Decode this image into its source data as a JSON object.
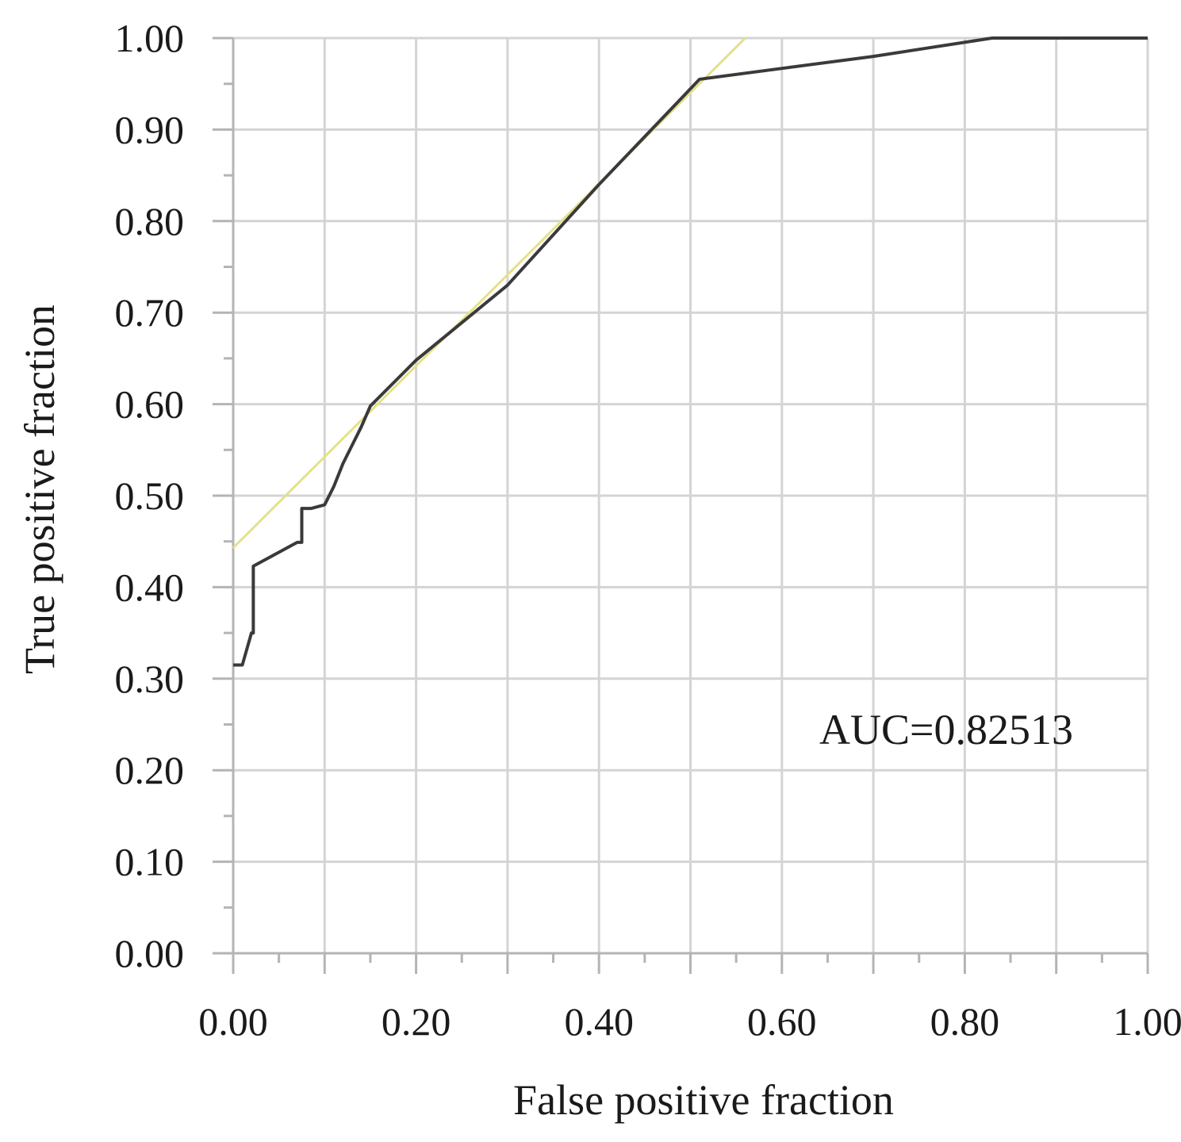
{
  "chart_data": {
    "type": "line",
    "title": "",
    "xlabel": "False positive fraction",
    "ylabel": "True positive fraction",
    "xlim": [
      0,
      1
    ],
    "ylim": [
      0,
      1
    ],
    "x_ticks": [
      "0.00",
      "0.20",
      "0.40",
      "0.60",
      "0.80",
      "1.00"
    ],
    "y_ticks": [
      "0.00",
      "0.10",
      "0.20",
      "0.30",
      "0.40",
      "0.50",
      "0.60",
      "0.70",
      "0.80",
      "0.90",
      "1.00"
    ],
    "grid": true,
    "annotation": "AUC=0.82513",
    "colors": {
      "roc": "#3a3a3a",
      "fit": "#e6e08a",
      "grid": "#d4d4d4",
      "axis": "#b4b4b4"
    },
    "series": [
      {
        "x": [
          0.0,
          0.01,
          0.02,
          0.022,
          0.022,
          0.07,
          0.075,
          0.075,
          0.085,
          0.1,
          0.11,
          0.12,
          0.13,
          0.14,
          0.15,
          0.2,
          0.3,
          0.4,
          0.51,
          0.7,
          0.83,
          1.0
        ],
        "y": [
          0.315,
          0.315,
          0.35,
          0.35,
          0.423,
          0.449,
          0.449,
          0.486,
          0.486,
          0.49,
          0.51,
          0.535,
          0.555,
          0.575,
          0.598,
          0.648,
          0.73,
          0.84,
          0.955,
          0.98,
          1.0,
          1.0
        ]
      },
      {
        "x": [
          0.0,
          0.56
        ],
        "y": [
          0.443,
          1.0
        ]
      }
    ]
  }
}
